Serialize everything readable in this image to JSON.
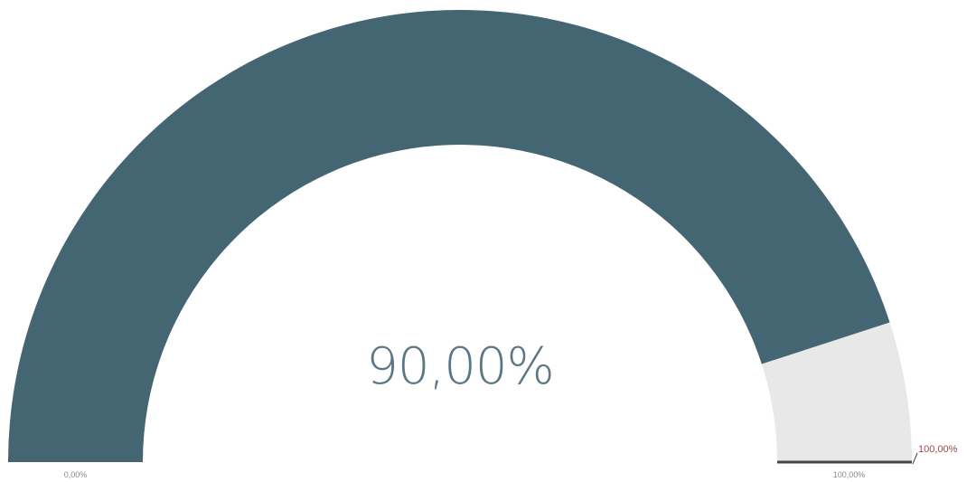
{
  "chart_data": {
    "type": "gauge",
    "value": 90,
    "min": 0,
    "max": 100,
    "target": 100,
    "value_label": "90,00%",
    "min_label": "0,00%",
    "max_label": "100,00%",
    "target_label": "100,00%",
    "colors": {
      "fill": "#446672",
      "track": "#e8e8e8",
      "value_text": "#5b7785",
      "tick_text": "#8a8a8a",
      "target_text": "#a0464a",
      "target_marker": "#444444"
    }
  }
}
